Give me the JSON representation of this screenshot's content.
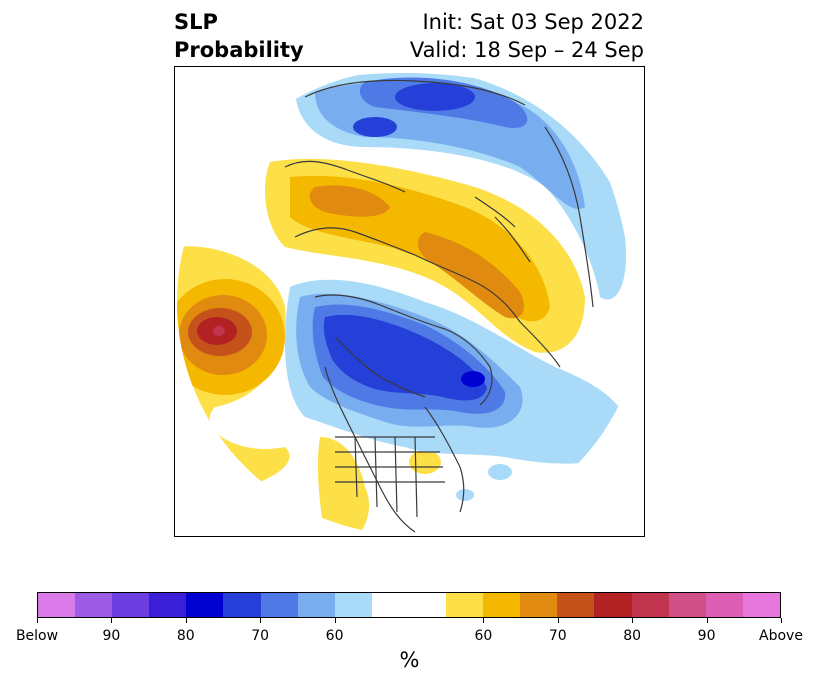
{
  "title": {
    "left_line1": "SLP",
    "left_line2": "Probability",
    "right_line1": "Init: Sat 03 Sep 2022",
    "right_line2": "Valid: 18 Sep – 24 Sep"
  },
  "colorbar": {
    "colors": [
      "#d97ae8",
      "#9c5ce6",
      "#6d3ee0",
      "#3b1fd6",
      "#0000d0",
      "#2440d8",
      "#4f7ae6",
      "#78aef0",
      "#a9daf8",
      "#ffffff",
      "#ffffff",
      "#fde047",
      "#f5b800",
      "#e08a10",
      "#c4521a",
      "#b22222",
      "#c2354f",
      "#cf4f86",
      "#dc5fb4",
      "#e877dd"
    ],
    "labels": [
      "Below",
      "90",
      "80",
      "70",
      "60",
      "60",
      "70",
      "80",
      "90",
      "Above"
    ],
    "unit": "%"
  },
  "colors": {
    "below_dark": "#0000d0",
    "below_mid": "#4f7ae6",
    "below_light": "#a9daf8",
    "above_light": "#fde047",
    "above_mid": "#e08a10",
    "above_dark": "#b22222",
    "coast": "#3a3a3a"
  }
}
